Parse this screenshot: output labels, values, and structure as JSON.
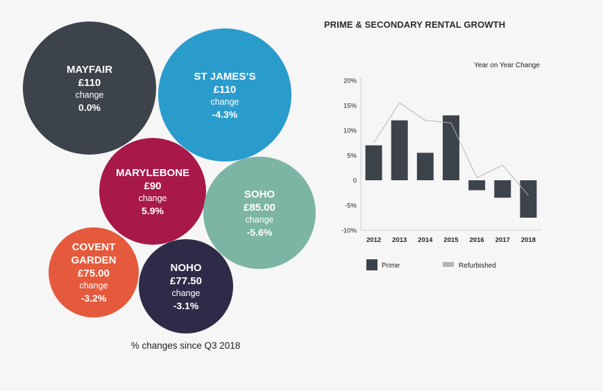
{
  "bubbles": {
    "caption": "% changes since Q3 2018",
    "items": [
      {
        "name": "MAYFAIR",
        "price": "£110",
        "change_label": "change",
        "change": "0.0%",
        "color": "#3d434b"
      },
      {
        "name": "ST JAMES’S",
        "price": "£110",
        "change_label": "change",
        "change": "-4.3%",
        "color": "#2a9ccc"
      },
      {
        "name": "MARYLEBONE",
        "price": "£90",
        "change_label": "change",
        "change": "5.9%",
        "color": "#a81848"
      },
      {
        "name": "SOHO",
        "price": "£85.00",
        "change_label": "change",
        "change": "-5.6%",
        "color": "#7db5a5"
      },
      {
        "name": "COVENT\nGARDEN",
        "price": "£75.00",
        "change_label": "change",
        "change": "-3.2%",
        "color": "#e55a3c"
      },
      {
        "name": "NOHO",
        "price": "£77.50",
        "change_label": "change",
        "change": "-3.1%",
        "color": "#2e2b48"
      }
    ]
  },
  "chart_data": {
    "type": "bar",
    "title": "PRIME & SECONDARY RENTAL GROWTH",
    "subtitle": "Year on Year Change",
    "categories": [
      "2012",
      "2013",
      "2014",
      "2015",
      "2016",
      "2017",
      "2018"
    ],
    "series": [
      {
        "name": "Prime",
        "kind": "bar",
        "color": "#3d434b",
        "values": [
          7,
          12,
          5.5,
          13,
          -2,
          -3.5,
          -7.5
        ]
      },
      {
        "name": "Refurbished",
        "kind": "line",
        "color": "#b5b5b5",
        "values": [
          7.5,
          15.5,
          12,
          11.5,
          0.5,
          3,
          -3
        ]
      }
    ],
    "ylim": [
      -10,
      20
    ],
    "yticks": [
      20,
      15,
      10,
      5,
      0,
      -5,
      -10
    ],
    "ytick_labels": [
      "20%",
      "15%",
      "10%",
      "5%",
      "0",
      "-5%",
      "-10%"
    ],
    "legend_position": "bottom"
  }
}
